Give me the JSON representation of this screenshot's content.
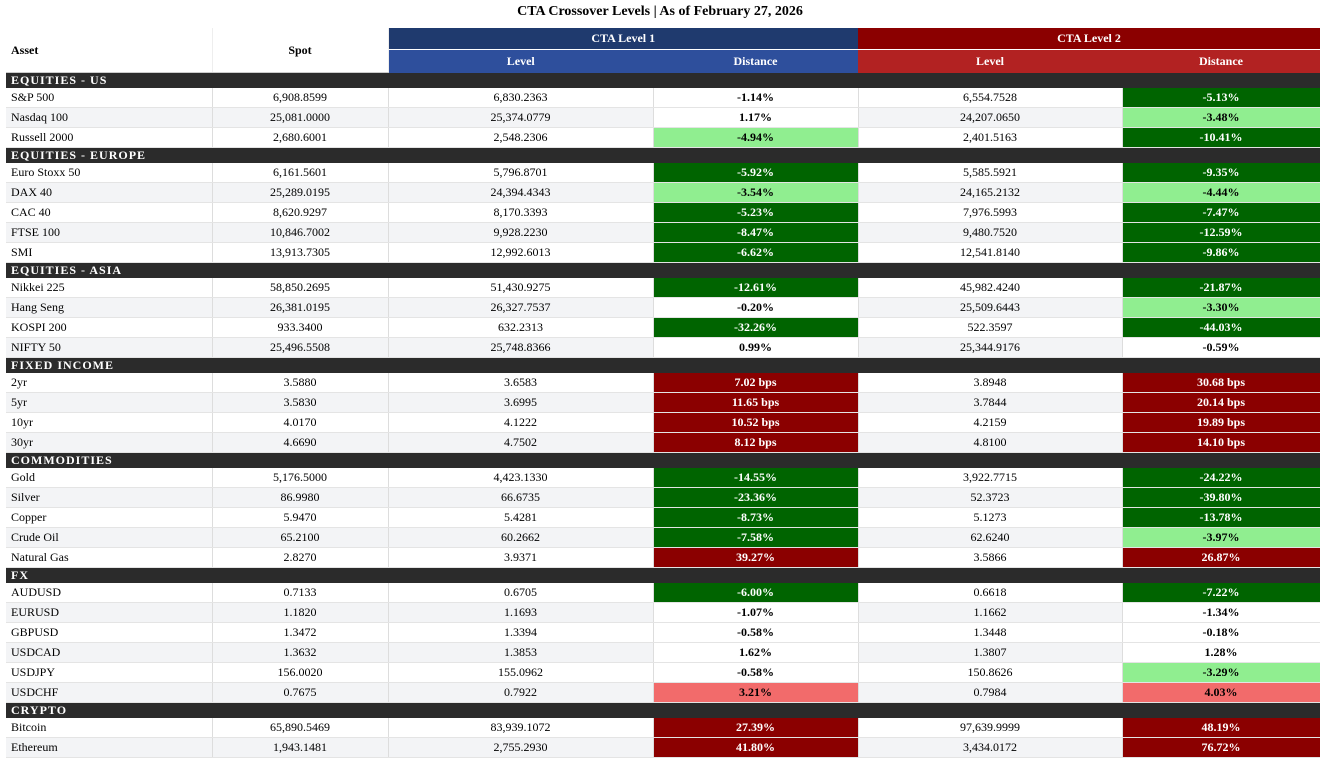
{
  "title": "CTA Crossover Levels | As of February 27, 2026",
  "header": {
    "asset": "Asset",
    "spot": "Spot",
    "groups": [
      "CTA Level 1",
      "CTA Level 2"
    ],
    "sub": [
      "Level",
      "Distance",
      "Level",
      "Distance"
    ]
  },
  "sections": [
    {
      "title": "EQUITIES - US",
      "rows": [
        {
          "cells": [
            "S&P 500",
            "6,908.8599",
            "6,830.2363",
            "-1.14%",
            "6,554.7528",
            "-5.13%"
          ],
          "shade": [
            "#ffffff",
            "#006400"
          ]
        },
        {
          "cells": [
            "Nasdaq 100",
            "25,081.0000",
            "25,374.0779",
            "1.17%",
            "24,207.0650",
            "-3.48%"
          ],
          "shade": [
            "#ffffff",
            "#90ee90"
          ]
        },
        {
          "cells": [
            "Russell 2000",
            "2,680.6001",
            "2,548.2306",
            "-4.94%",
            "2,401.5163",
            "-10.41%"
          ],
          "shade": [
            "#90ee90",
            "#006400"
          ]
        }
      ]
    },
    {
      "title": "EQUITIES - EUROPE",
      "rows": [
        {
          "cells": [
            "Euro Stoxx 50",
            "6,161.5601",
            "5,796.8701",
            "-5.92%",
            "5,585.5921",
            "-9.35%"
          ],
          "shade": [
            "#006400",
            "#006400"
          ]
        },
        {
          "cells": [
            "DAX 40",
            "25,289.0195",
            "24,394.4343",
            "-3.54%",
            "24,165.2132",
            "-4.44%"
          ],
          "shade": [
            "#90ee90",
            "#90ee90"
          ]
        },
        {
          "cells": [
            "CAC 40",
            "8,620.9297",
            "8,170.3393",
            "-5.23%",
            "7,976.5993",
            "-7.47%"
          ],
          "shade": [
            "#006400",
            "#006400"
          ]
        },
        {
          "cells": [
            "FTSE 100",
            "10,846.7002",
            "9,928.2230",
            "-8.47%",
            "9,480.7520",
            "-12.59%"
          ],
          "shade": [
            "#006400",
            "#006400"
          ]
        },
        {
          "cells": [
            "SMI",
            "13,913.7305",
            "12,992.6013",
            "-6.62%",
            "12,541.8140",
            "-9.86%"
          ],
          "shade": [
            "#006400",
            "#006400"
          ]
        }
      ]
    },
    {
      "title": "EQUITIES - ASIA",
      "rows": [
        {
          "cells": [
            "Nikkei 225",
            "58,850.2695",
            "51,430.9275",
            "-12.61%",
            "45,982.4240",
            "-21.87%"
          ],
          "shade": [
            "#006400",
            "#006400"
          ]
        },
        {
          "cells": [
            "Hang Seng",
            "26,381.0195",
            "26,327.7537",
            "-0.20%",
            "25,509.6443",
            "-3.30%"
          ],
          "shade": [
            "#ffffff",
            "#90ee90"
          ]
        },
        {
          "cells": [
            "KOSPI 200",
            "933.3400",
            "632.2313",
            "-32.26%",
            "522.3597",
            "-44.03%"
          ],
          "shade": [
            "#006400",
            "#006400"
          ]
        },
        {
          "cells": [
            "NIFTY 50",
            "25,496.5508",
            "25,748.8366",
            "0.99%",
            "25,344.9176",
            "-0.59%"
          ],
          "shade": [
            "#ffffff",
            "#ffffff"
          ]
        }
      ]
    },
    {
      "title": "FIXED INCOME",
      "rows": [
        {
          "cells": [
            "2yr",
            "3.5880",
            "3.6583",
            "7.02 bps",
            "3.8948",
            "30.68 bps"
          ],
          "shade": [
            "#8b0000",
            "#8b0000"
          ]
        },
        {
          "cells": [
            "5yr",
            "3.5830",
            "3.6995",
            "11.65 bps",
            "3.7844",
            "20.14 bps"
          ],
          "shade": [
            "#8b0000",
            "#8b0000"
          ]
        },
        {
          "cells": [
            "10yr",
            "4.0170",
            "4.1222",
            "10.52 bps",
            "4.2159",
            "19.89 bps"
          ],
          "shade": [
            "#8b0000",
            "#8b0000"
          ]
        },
        {
          "cells": [
            "30yr",
            "4.6690",
            "4.7502",
            "8.12 bps",
            "4.8100",
            "14.10 bps"
          ],
          "shade": [
            "#8b0000",
            "#8b0000"
          ]
        }
      ]
    },
    {
      "title": "COMMODITIES",
      "rows": [
        {
          "cells": [
            "Gold",
            "5,176.5000",
            "4,423.1330",
            "-14.55%",
            "3,922.7715",
            "-24.22%"
          ],
          "shade": [
            "#006400",
            "#006400"
          ]
        },
        {
          "cells": [
            "Silver",
            "86.9980",
            "66.6735",
            "-23.36%",
            "52.3723",
            "-39.80%"
          ],
          "shade": [
            "#006400",
            "#006400"
          ]
        },
        {
          "cells": [
            "Copper",
            "5.9470",
            "5.4281",
            "-8.73%",
            "5.1273",
            "-13.78%"
          ],
          "shade": [
            "#006400",
            "#006400"
          ]
        },
        {
          "cells": [
            "Crude Oil",
            "65.2100",
            "60.2662",
            "-7.58%",
            "62.6240",
            "-3.97%"
          ],
          "shade": [
            "#006400",
            "#90ee90"
          ]
        },
        {
          "cells": [
            "Natural Gas",
            "2.8270",
            "3.9371",
            "39.27%",
            "3.5866",
            "26.87%"
          ],
          "shade": [
            "#8b0000",
            "#8b0000"
          ]
        }
      ]
    },
    {
      "title": "FX",
      "rows": [
        {
          "cells": [
            "AUDUSD",
            "0.7133",
            "0.6705",
            "-6.00%",
            "0.6618",
            "-7.22%"
          ],
          "shade": [
            "#006400",
            "#006400"
          ]
        },
        {
          "cells": [
            "EURUSD",
            "1.1820",
            "1.1693",
            "-1.07%",
            "1.1662",
            "-1.34%"
          ],
          "shade": [
            "#ffffff",
            "#ffffff"
          ]
        },
        {
          "cells": [
            "GBPUSD",
            "1.3472",
            "1.3394",
            "-0.58%",
            "1.3448",
            "-0.18%"
          ],
          "shade": [
            "#ffffff",
            "#ffffff"
          ]
        },
        {
          "cells": [
            "USDCAD",
            "1.3632",
            "1.3853",
            "1.62%",
            "1.3807",
            "1.28%"
          ],
          "shade": [
            "#ffffff",
            "#ffffff"
          ]
        },
        {
          "cells": [
            "USDJPY",
            "156.0020",
            "155.0962",
            "-0.58%",
            "150.8626",
            "-3.29%"
          ],
          "shade": [
            "#ffffff",
            "#90ee90"
          ]
        },
        {
          "cells": [
            "USDCHF",
            "0.7675",
            "0.7922",
            "3.21%",
            "0.7984",
            "4.03%"
          ],
          "shade": [
            "#f26b6b",
            "#f26b6b"
          ]
        }
      ]
    },
    {
      "title": "CRYPTO",
      "rows": [
        {
          "cells": [
            "Bitcoin",
            "65,890.5469",
            "83,939.1072",
            "27.39%",
            "97,639.9999",
            "48.19%"
          ],
          "shade": [
            "#8b0000",
            "#8b0000"
          ]
        },
        {
          "cells": [
            "Ethereum",
            "1,943.1481",
            "2,755.2930",
            "41.80%",
            "3,434.0172",
            "76.72%"
          ],
          "shade": [
            "#8b0000",
            "#8b0000"
          ]
        }
      ]
    }
  ]
}
